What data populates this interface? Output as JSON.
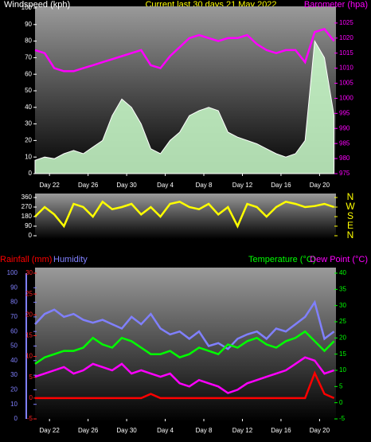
{
  "chart_data": [
    {
      "type": "line",
      "title": "Current last 30 days 21 May 2022",
      "x": [
        0,
        1,
        2,
        3,
        4,
        5,
        6,
        7,
        8,
        9,
        10,
        11,
        12,
        13,
        14,
        15,
        16,
        17,
        18,
        19,
        20,
        21,
        22,
        23,
        24,
        25,
        26,
        27,
        28,
        29,
        30,
        31
      ],
      "xlim": [
        0,
        31.2
      ],
      "xticks": [
        {
          "value": 1.5,
          "label": "Day 22"
        },
        {
          "value": 5.5,
          "label": "Day 26"
        },
        {
          "value": 9.5,
          "label": "Day 30"
        },
        {
          "value": 13.5,
          "label": "Day 4"
        },
        {
          "value": 17.5,
          "label": "Day 8"
        },
        {
          "value": 21.5,
          "label": "Day 12"
        },
        {
          "value": 25.5,
          "label": "Day 16"
        },
        {
          "value": 29.5,
          "label": "Day 20"
        }
      ],
      "ylim": [
        0,
        100
      ],
      "yticks": [
        0,
        10,
        20,
        30,
        40,
        50,
        60,
        70,
        80,
        90,
        100
      ],
      "y2lim": [
        975,
        1030
      ],
      "y2ticks": [
        975,
        980,
        985,
        990,
        995,
        1000,
        1005,
        1010,
        1015,
        1020,
        1025
      ],
      "axis_colors": {
        "y": "#ffffff",
        "y2": "#ff00ff"
      },
      "series": [
        {
          "name": "Windspeed (kph)",
          "color": "#ccffcc",
          "fill": true,
          "values": [
            8,
            10,
            9,
            12,
            14,
            12,
            16,
            20,
            35,
            45,
            40,
            30,
            15,
            12,
            20,
            25,
            35,
            38,
            40,
            38,
            25,
            22,
            20,
            18,
            15,
            12,
            10,
            12,
            20,
            80,
            70,
            35
          ]
        },
        {
          "name": "Barometer (hpa)",
          "color": "#ff00ff",
          "axis": "y2",
          "values": [
            1016,
            1015,
            1010,
            1009,
            1009,
            1010,
            1011,
            1012,
            1013,
            1014,
            1015,
            1016,
            1011,
            1010,
            1014,
            1017,
            1020,
            1021,
            1020,
            1019,
            1020,
            1020,
            1021,
            1018,
            1016,
            1015,
            1016,
            1016,
            1012,
            1022,
            1023,
            1019
          ]
        }
      ]
    },
    {
      "type": "line",
      "x": [
        0,
        1,
        2,
        3,
        4,
        5,
        6,
        7,
        8,
        9,
        10,
        11,
        12,
        13,
        14,
        15,
        16,
        17,
        18,
        19,
        20,
        21,
        22,
        23,
        24,
        25,
        26,
        27,
        28,
        29,
        30,
        31
      ],
      "xlim": [
        0,
        31.2
      ],
      "ylim": [
        0,
        360
      ],
      "yticks": [
        0,
        90,
        180,
        270,
        360
      ],
      "y2lim": [
        0,
        360
      ],
      "y2ticks": [
        {
          "value": 360,
          "label": "N"
        },
        {
          "value": 270,
          "label": "W"
        },
        {
          "value": 180,
          "label": "S"
        },
        {
          "value": 90,
          "label": "E"
        },
        {
          "value": 0,
          "label": "N"
        }
      ],
      "axis_colors": {
        "y": "#ffffff",
        "y2": "#ffff00"
      },
      "series": [
        {
          "color": "#ffff00",
          "values": [
            180,
            270,
            200,
            90,
            300,
            270,
            180,
            320,
            250,
            270,
            300,
            200,
            270,
            180,
            300,
            320,
            270,
            250,
            300,
            200,
            270,
            90,
            300,
            270,
            180,
            270,
            320,
            300,
            270,
            280,
            300,
            270
          ]
        }
      ]
    },
    {
      "type": "line",
      "x": [
        0,
        1,
        2,
        3,
        4,
        5,
        6,
        7,
        8,
        9,
        10,
        11,
        12,
        13,
        14,
        15,
        16,
        17,
        18,
        19,
        20,
        21,
        22,
        23,
        24,
        25,
        26,
        27,
        28,
        29,
        30,
        31
      ],
      "xlim": [
        0,
        31.2
      ],
      "xticks": [
        {
          "value": 1.5,
          "label": "Day 22"
        },
        {
          "value": 5.5,
          "label": "Day 26"
        },
        {
          "value": 9.5,
          "label": "Day 30"
        },
        {
          "value": 13.5,
          "label": "Day 4"
        },
        {
          "value": 17.5,
          "label": "Day 8"
        },
        {
          "value": 21.5,
          "label": "Day 12"
        },
        {
          "value": 25.5,
          "label": "Day 16"
        },
        {
          "value": 29.5,
          "label": "Day 20"
        }
      ],
      "ylim": [
        0,
        100
      ],
      "yticks": [
        0,
        10,
        20,
        30,
        40,
        50,
        60,
        70,
        80,
        90,
        100
      ],
      "y2lim": [
        -5,
        40
      ],
      "y2ticks": [
        -5,
        0,
        5,
        10,
        15,
        20,
        25,
        30,
        35,
        40
      ],
      "y3lim": [
        -5,
        30
      ],
      "y3ticks": [
        -5,
        0,
        5,
        10,
        15,
        20,
        25,
        30
      ],
      "axis_colors": {
        "y": "#8080ff",
        "y2": "#00ff00",
        "y3": "#ff2020"
      },
      "series": [
        {
          "name": "Rainfall (mm)",
          "color": "#ff0000",
          "axis": "y3",
          "values": [
            0,
            0,
            0,
            0,
            0,
            0,
            0,
            0,
            0,
            0,
            0,
            0,
            1,
            0,
            0,
            0,
            0,
            0,
            0,
            0,
            0,
            0,
            0,
            0,
            0,
            0,
            0,
            0,
            0,
            6,
            1,
            0
          ]
        },
        {
          "name": "Humidity",
          "color": "#8080ff",
          "values": [
            65,
            72,
            75,
            70,
            72,
            68,
            66,
            68,
            65,
            62,
            70,
            65,
            72,
            62,
            58,
            60,
            55,
            60,
            50,
            52,
            48,
            55,
            58,
            60,
            55,
            62,
            60,
            65,
            70,
            80,
            55,
            60
          ]
        },
        {
          "name": "Temperature (°C)",
          "color": "#00ff00",
          "axis": "y2",
          "values": [
            12,
            14,
            15,
            16,
            16,
            17,
            20,
            18,
            17,
            20,
            19,
            17,
            15,
            15,
            16,
            14,
            15,
            17,
            16,
            15,
            18,
            17,
            19,
            20,
            18,
            17,
            19,
            20,
            22,
            19,
            16,
            19
          ]
        },
        {
          "name": "Dew Point (°C)",
          "color": "#ff00ff",
          "axis": "y2",
          "values": [
            8,
            9,
            10,
            11,
            9,
            10,
            12,
            11,
            10,
            12,
            9,
            10,
            9,
            8,
            9,
            6,
            5,
            7,
            6,
            5,
            3,
            4,
            6,
            7,
            8,
            9,
            10,
            12,
            14,
            13,
            9,
            10
          ]
        }
      ]
    }
  ]
}
